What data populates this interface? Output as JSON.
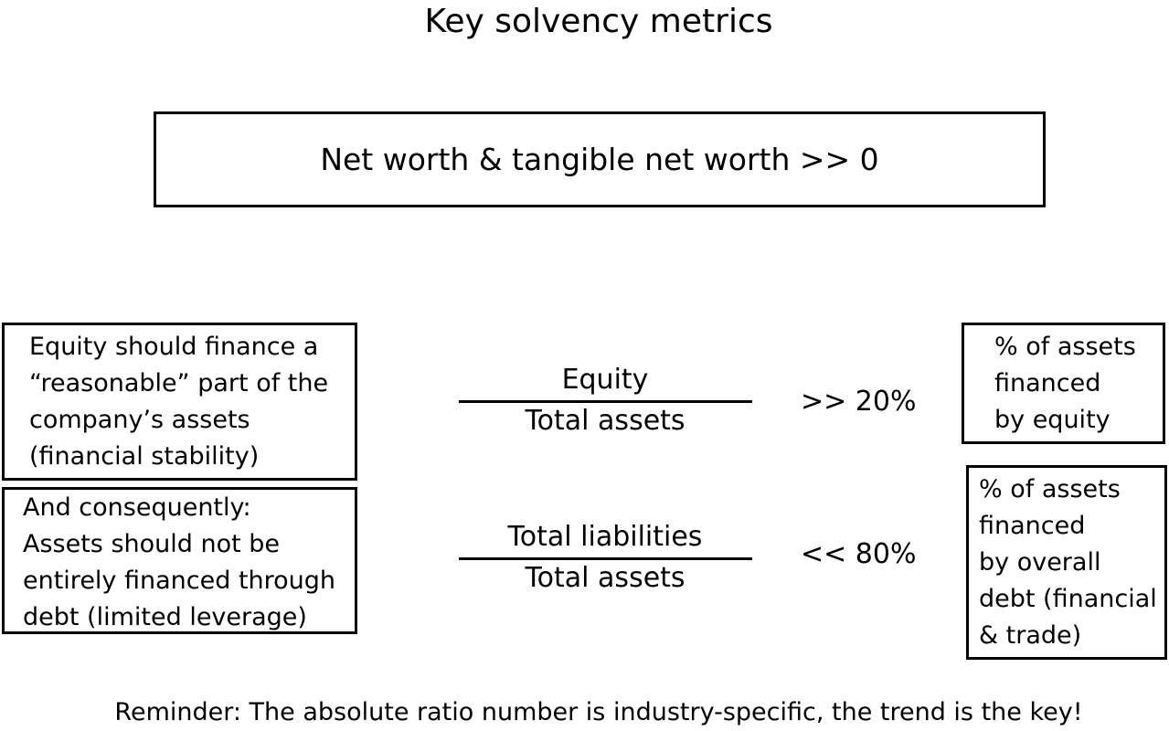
{
  "title": "Key solvency metrics",
  "top_box": "Net worth & tangible net worth >> 0",
  "rows": [
    {
      "left_text": "Equity should finance a\n“reasonable” part of the\ncompany’s assets\n(financial stability)",
      "numerator": "Equity",
      "denominator": "Total assets",
      "comparison": ">> 20%",
      "right_text": "% of assets\nfinanced\nby equity"
    },
    {
      "left_text": "And consequently:\nAssets should not be\nentirely financed through\ndebt (limited leverage)",
      "numerator": "Total liabilities",
      "denominator": "Total assets",
      "comparison": "<< 80%",
      "right_text": "% of assets\nfinanced\nby overall\ndebt (financial\n& trade)"
    }
  ],
  "reminder": "Reminder: The absolute ratio number is industry-specific, the trend is the key!"
}
